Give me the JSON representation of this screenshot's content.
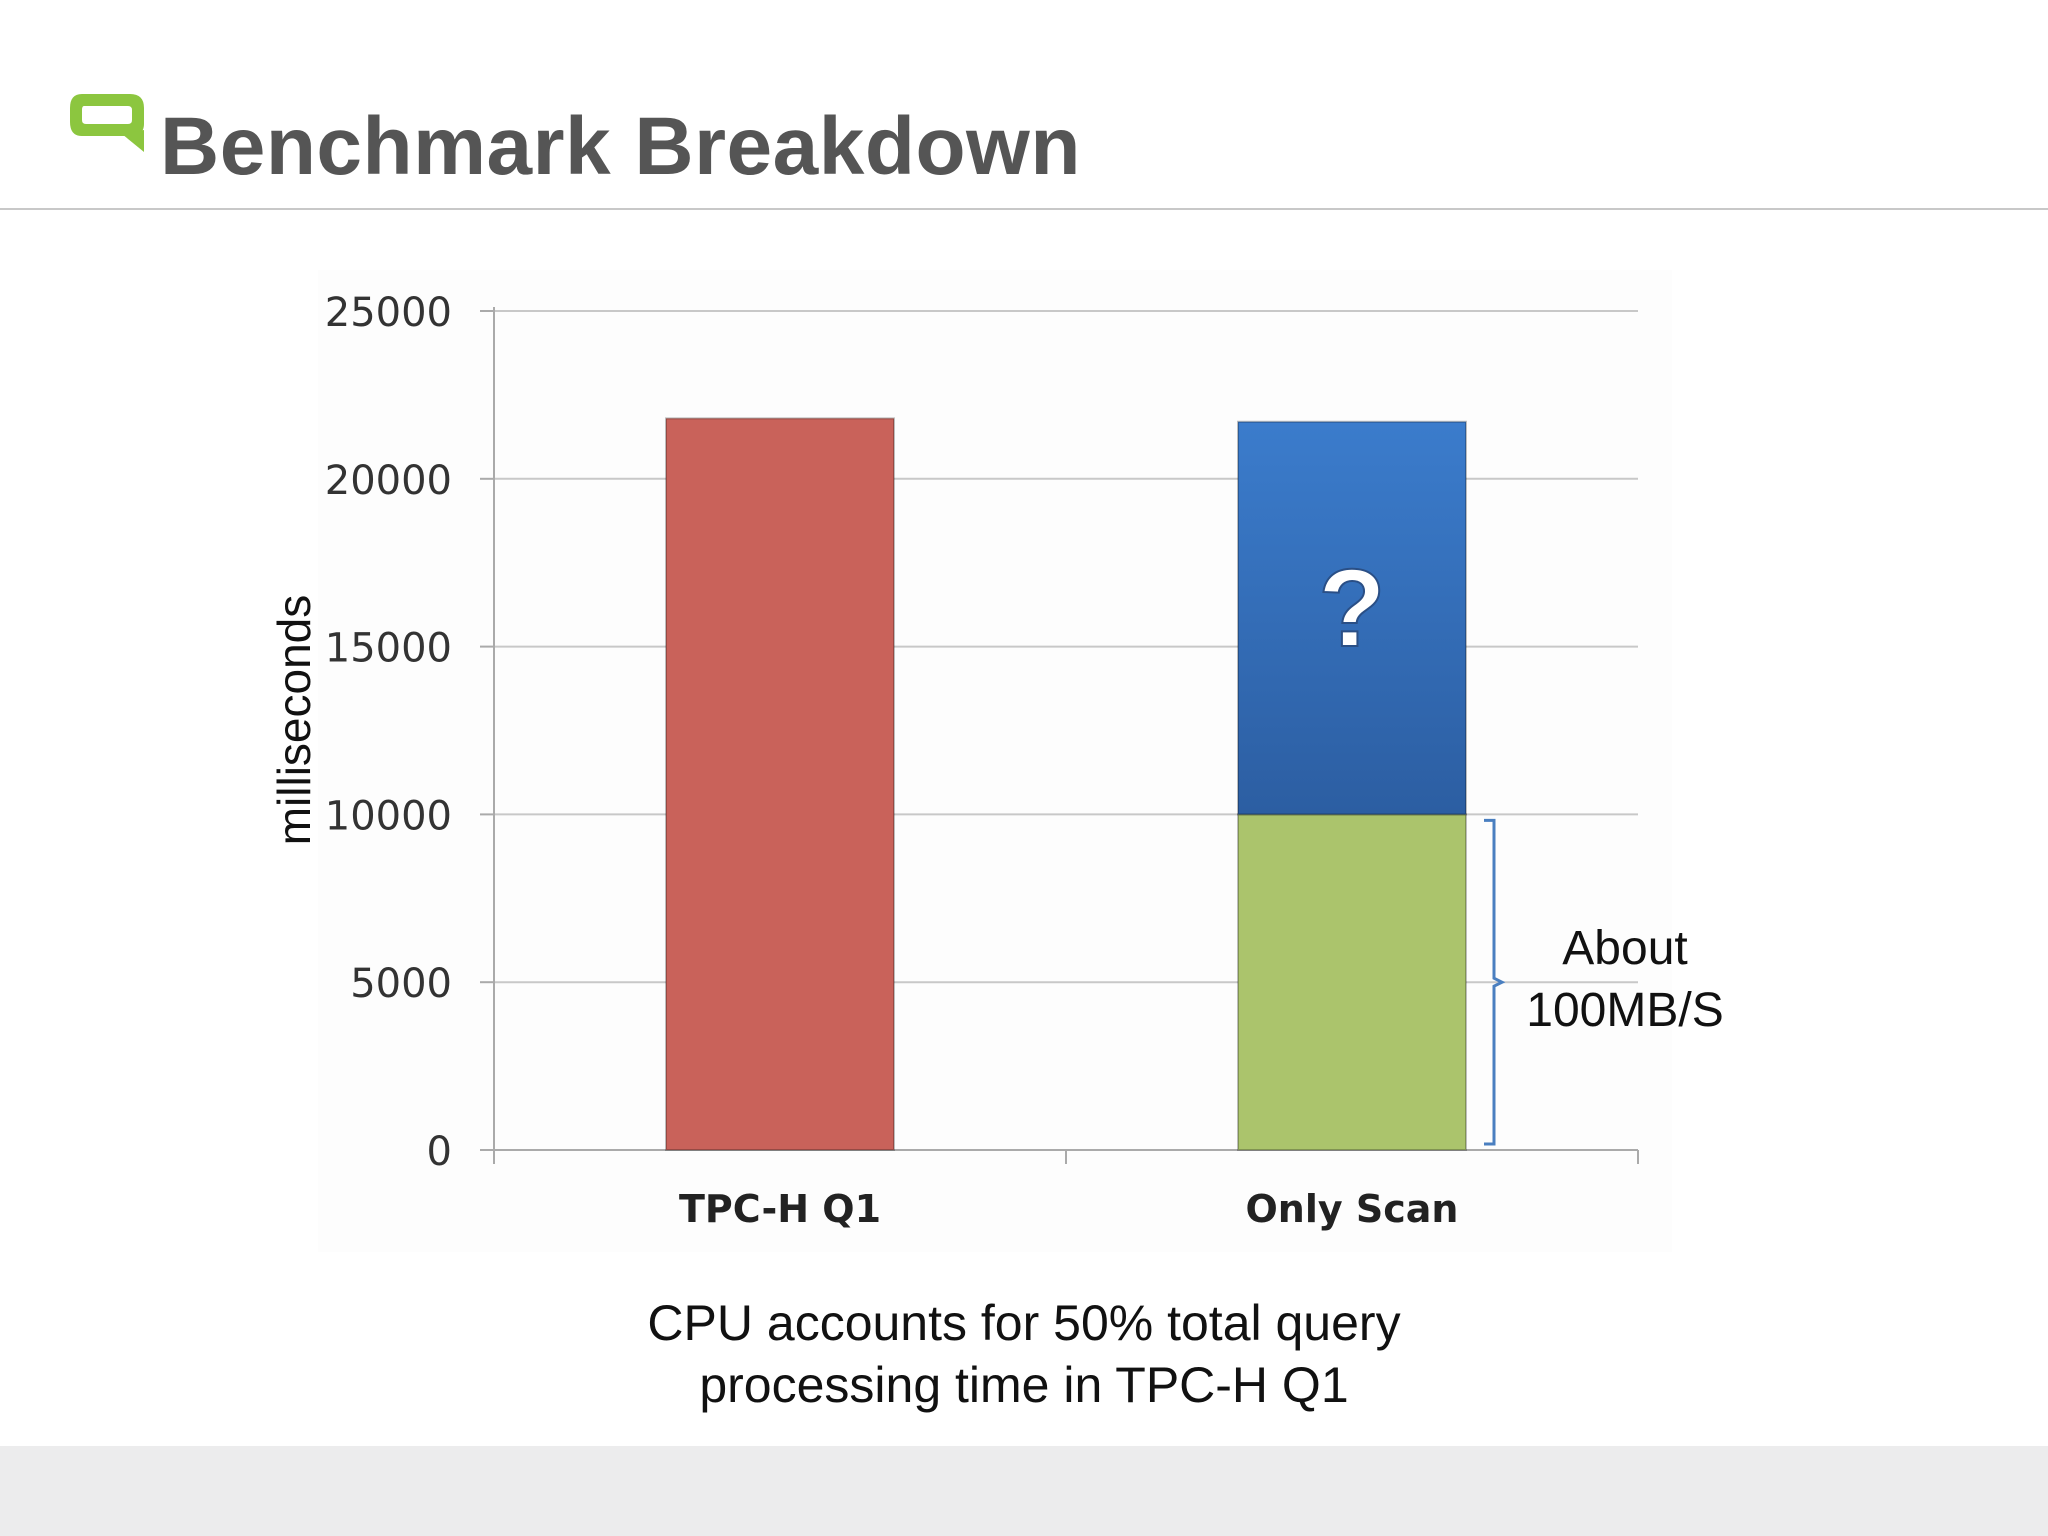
{
  "slide": {
    "title": "Benchmark Breakdown",
    "caption_line1": "CPU accounts for 50% total query",
    "caption_line2": "processing time in TPC-H Q1"
  },
  "colors": {
    "logo_green": "#8cc63f",
    "title_gray": "#555555",
    "bar_red": "#c9625a",
    "bar_blue_top": "#3b7ccc",
    "bar_blue_bottom": "#2c5ea2",
    "bar_green": "#abc46c",
    "bracket_blue": "#4a7fc0",
    "grid": "#c8c8c8",
    "footer": "#ececed"
  },
  "chart_data": {
    "type": "bar",
    "stacked": true,
    "categories": [
      "TPC-H Q1",
      "Only Scan"
    ],
    "series": [
      {
        "name": "",
        "values": [
          21800,
          0
        ]
      },
      {
        "name": "",
        "values": [
          0,
          10000
        ]
      },
      {
        "name": "",
        "values": [
          0,
          11700
        ]
      }
    ],
    "ylabel": "milliseconds",
    "ylim": [
      0,
      25000
    ],
    "yticks": [
      "0",
      "5000",
      "10000",
      "15000",
      "20000",
      "25000"
    ],
    "grid": true,
    "bar_annotation": "?",
    "bracket_annotation": [
      "About",
      "100MB/S"
    ]
  }
}
